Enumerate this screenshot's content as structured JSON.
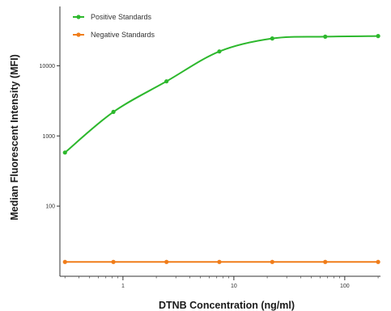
{
  "chart_data": {
    "type": "line",
    "xlabel": "DTNB Concentration (ng/ml)",
    "ylabel": "Median  Fluorescent Intensity  (MFI)",
    "xscale": "log",
    "yscale": "log",
    "xlim": [
      0.27,
      210
    ],
    "ylim": [
      10,
      70000
    ],
    "x_ticks": [
      {
        "value": 1,
        "label": "1"
      },
      {
        "value": 10,
        "label": "10"
      },
      {
        "value": 100,
        "label": "100"
      }
    ],
    "y_ticks": [
      {
        "value": 100,
        "label": "100"
      },
      {
        "value": 1000,
        "label": "1000"
      },
      {
        "value": 10000,
        "label": "10000"
      }
    ],
    "x_minor_ticks": [
      0.3,
      0.4,
      0.5,
      0.6,
      0.7,
      0.8,
      0.9,
      2,
      3,
      4,
      5,
      6,
      7,
      8,
      9,
      20,
      30,
      40,
      50,
      60,
      70,
      80,
      90,
      200
    ],
    "x": [
      0.3,
      0.82,
      2.47,
      7.4,
      22.2,
      66.7,
      200
    ],
    "series": [
      {
        "name": "Positive Standards",
        "color": "#2db82d",
        "values": [
          580,
          2200,
          6000,
          16000,
          24500,
          26000,
          26500
        ]
      },
      {
        "name": "Negative Standards",
        "color": "#f07d1a",
        "values": [
          16,
          16,
          16,
          16,
          16,
          16,
          16
        ]
      }
    ],
    "legend_position": "top-left",
    "grid": false
  }
}
